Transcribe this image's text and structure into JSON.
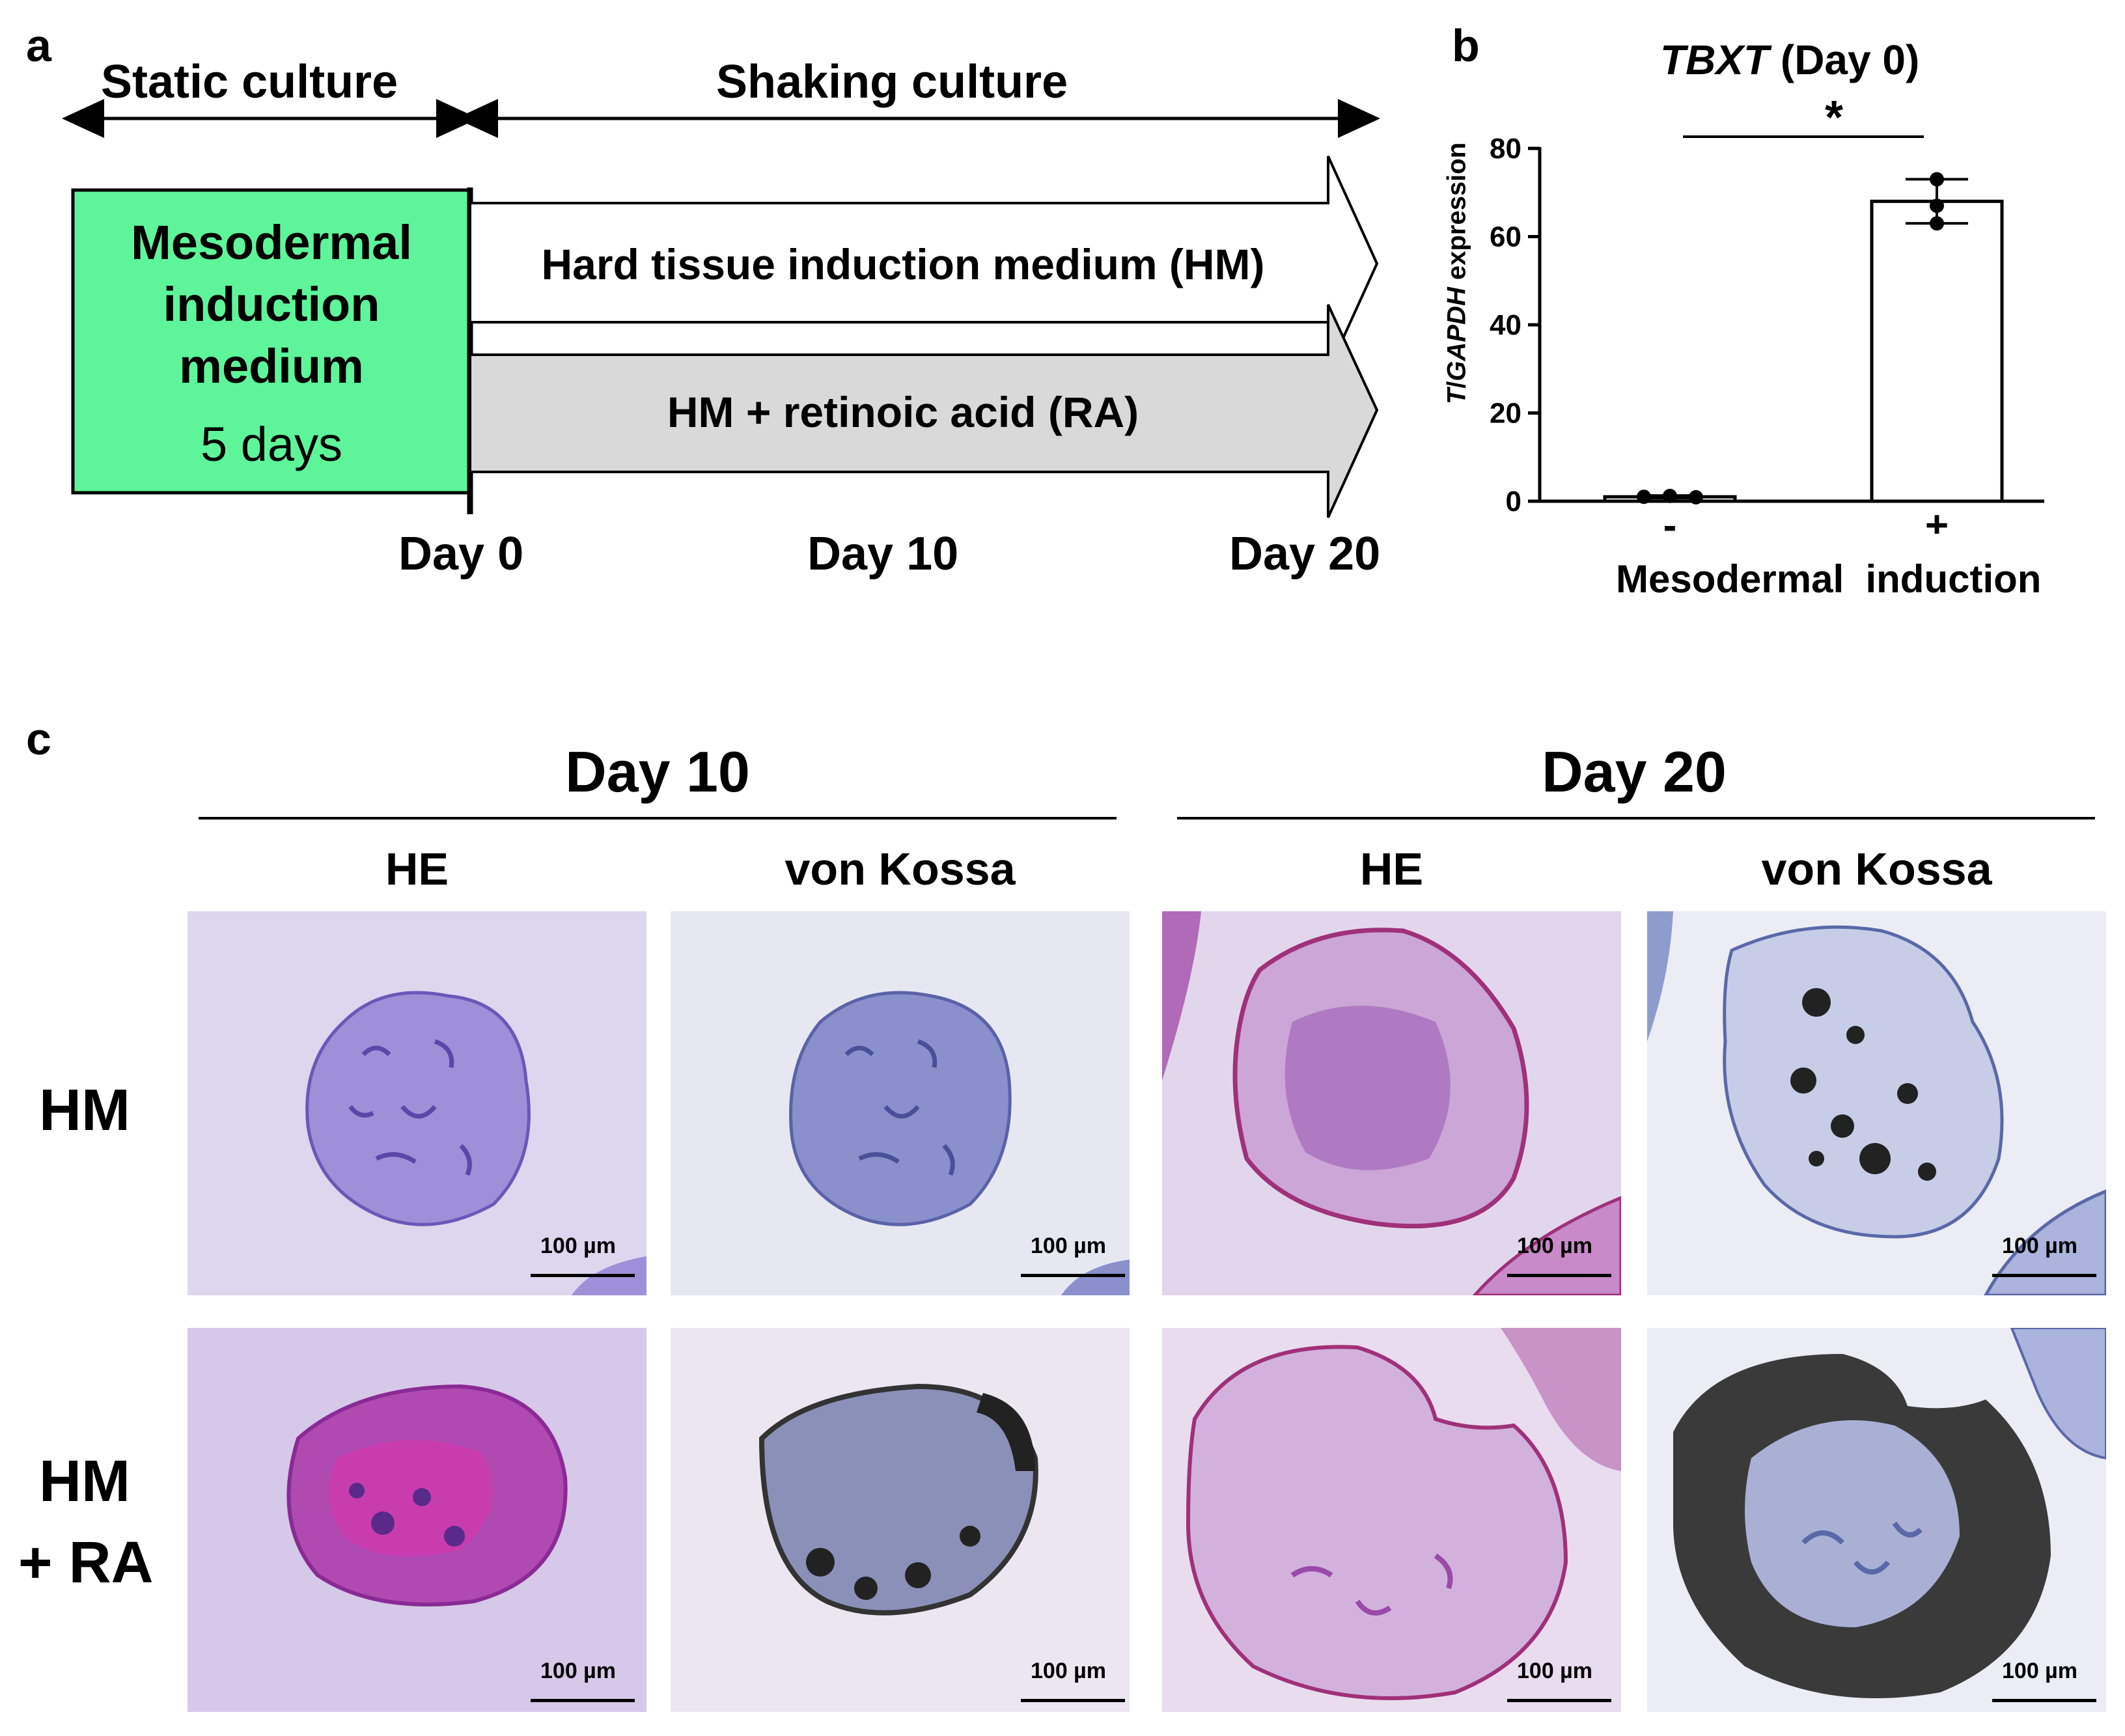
{
  "panel_a": {
    "label": "a",
    "static_label": "Static culture",
    "shaking_label": "Shaking culture",
    "meso_box": {
      "line1": "Mesodermal",
      "line2": "induction",
      "line3": "medium",
      "duration": "5 days",
      "color": "#5ef59a"
    },
    "arrow_hm_label": "Hard tissue induction medium (HM)",
    "arrow_ra_label": "HM + retinoic acid (RA)",
    "arrow_ra_color": "#d9d9d9",
    "day_labels": [
      "Day 0",
      "Day 10",
      "Day 20"
    ]
  },
  "panel_b": {
    "label": "b",
    "title_gene": "TBXT",
    "title_rest": " (Day 0)",
    "ylabel_gene1": "T",
    "ylabel_gene2": "GAPDH",
    "ylabel_rest": " expression",
    "xlabel": "Mesodermal  induction",
    "significance": "*"
  },
  "chart_data": {
    "type": "bar",
    "title": "TBXT (Day 0)",
    "categories": [
      "-",
      "+"
    ],
    "values": [
      1,
      68
    ],
    "error": [
      0.3,
      5
    ],
    "points": [
      [
        1,
        1.2,
        0.9
      ],
      [
        73,
        67,
        63
      ]
    ],
    "ylabel": "T/GAPDH expression",
    "xlabel": "Mesodermal induction",
    "ylim": [
      0,
      80
    ],
    "yticks": [
      0,
      20,
      40,
      60,
      80
    ]
  },
  "panel_c": {
    "label": "c",
    "day10": "Day 10",
    "day20": "Day 20",
    "col_labels": [
      "HE",
      "von Kossa",
      "HE",
      "von Kossa"
    ],
    "row_hm": "HM",
    "row_hmra_1": "HM",
    "row_hmra_2": "+ RA",
    "scale_label": "100 µm"
  }
}
